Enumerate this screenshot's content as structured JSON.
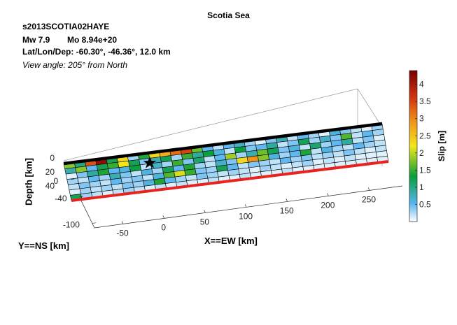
{
  "header": {
    "title": "Scotia Sea",
    "event_id": "s2013SCOTIA02HAYE",
    "mw_label": "Mw 7.9",
    "mo_label": "Mo 8.94e+20",
    "location_label": "Lat/Lon/Dep: -60.30°, -46.36°, 12.0 km",
    "view_label": "View angle: 205° from North"
  },
  "colors": {
    "trace": "#e8221f",
    "top_edge": "#000000",
    "grid": "#000000",
    "axes": "#262626"
  },
  "chart_data": {
    "type": "heatmap",
    "title": "Scotia Sea",
    "xlabel": "X==EW [km]",
    "ylabel": "Y==NS [km]",
    "zlabel": "Depth [km]",
    "colorbar_label": "Slip [m]",
    "x_ticks": [
      -50,
      0,
      50,
      100,
      150,
      200,
      250
    ],
    "y_ticks": [
      0,
      -40,
      -100
    ],
    "z_ticks": [
      0,
      20,
      40
    ],
    "colorbar_ticks": [
      0.5,
      1,
      1.5,
      2,
      2.5,
      3,
      3.5,
      4
    ],
    "clim": [
      0,
      4.4
    ],
    "grid": true,
    "colormap": [
      "#ffffff",
      "#56b4f0",
      "#0a9e3a",
      "#f2e61a",
      "#f29a1a",
      "#d23510",
      "#7a0000"
    ],
    "fault_grid": {
      "rows": 7,
      "cols": 30,
      "epicenter": {
        "row": 1,
        "col": 5
      }
    },
    "slip": [
      [
        1.8,
        1.0,
        3.4,
        4.2,
        1.2,
        2.3,
        0.3,
        1.4,
        2.3,
        2.7,
        3.2,
        3.5,
        1.7,
        0.5,
        0.2,
        0.5,
        0.7,
        0.3,
        0.1,
        0.4,
        0.8,
        0.2,
        0.5,
        0.3,
        0.1,
        0.6,
        0.4,
        0.2,
        0.1,
        0.3
      ],
      [
        0.8,
        1.8,
        0.5,
        1.2,
        1.5,
        2.2,
        1.2,
        0.4,
        0.8,
        1.2,
        0.3,
        1.5,
        0.9,
        1.3,
        0.6,
        0.2,
        1.3,
        0.4,
        0.5,
        0.9,
        0.2,
        0.4,
        1.2,
        0.3,
        0.7,
        0.4,
        1.6,
        0.2,
        0.5,
        0.3
      ],
      [
        0.1,
        0.4,
        0.9,
        1.4,
        0.5,
        0.6,
        1.3,
        0.2,
        0.7,
        0.3,
        1.5,
        0.4,
        1.1,
        0.2,
        0.5,
        1.9,
        0.3,
        0.8,
        1.7,
        1.2,
        0.4,
        0.6,
        0.2,
        1.1,
        0.3,
        0.5,
        0.9,
        0.2,
        0.4,
        0.1
      ],
      [
        0.3,
        0.2,
        0.5,
        0.3,
        0.8,
        0.4,
        0.2,
        0.6,
        0.3,
        1.2,
        0.5,
        1.4,
        0.3,
        0.2,
        0.7,
        0.4,
        2.3,
        2.9,
        1.8,
        0.6,
        0.3,
        0.5,
        1.4,
        0.2,
        0.6,
        0.3,
        0.2,
        0.5,
        0.3,
        0.2
      ],
      [
        0.2,
        0.4,
        0.3,
        0.2,
        0.5,
        0.3,
        0.4,
        0.2,
        0.6,
        1.6,
        2.1,
        1.5,
        0.4,
        0.3,
        1.2,
        0.5,
        0.2,
        0.4,
        0.3,
        0.2,
        0.5,
        0.3,
        0.4,
        0.2,
        0.3,
        0.2,
        0.4,
        0.2,
        0.1,
        0.2
      ],
      [
        0.1,
        0.3,
        0.2,
        0.3,
        0.2,
        0.4,
        0.3,
        0.6,
        1.4,
        0.5,
        0.3,
        0.2,
        0.4,
        0.3,
        0.2,
        0.3,
        0.2,
        0.1,
        0.3,
        0.2,
        0.1,
        0.2,
        0.3,
        0.1,
        0.2,
        0.1,
        0.2,
        0.1,
        0.1,
        0.1
      ],
      [
        1.2,
        0.3,
        0.2,
        0.1,
        0.2,
        0.3,
        0.2,
        0.1,
        0.2,
        0.1,
        0.2,
        0.1,
        0.1,
        0.2,
        0.1,
        0.1,
        0.2,
        0.1,
        0.1,
        0.1,
        0.2,
        0.1,
        0.1,
        0.1,
        0.1,
        0.1,
        0.1,
        0.1,
        0.1,
        0.1
      ]
    ]
  }
}
